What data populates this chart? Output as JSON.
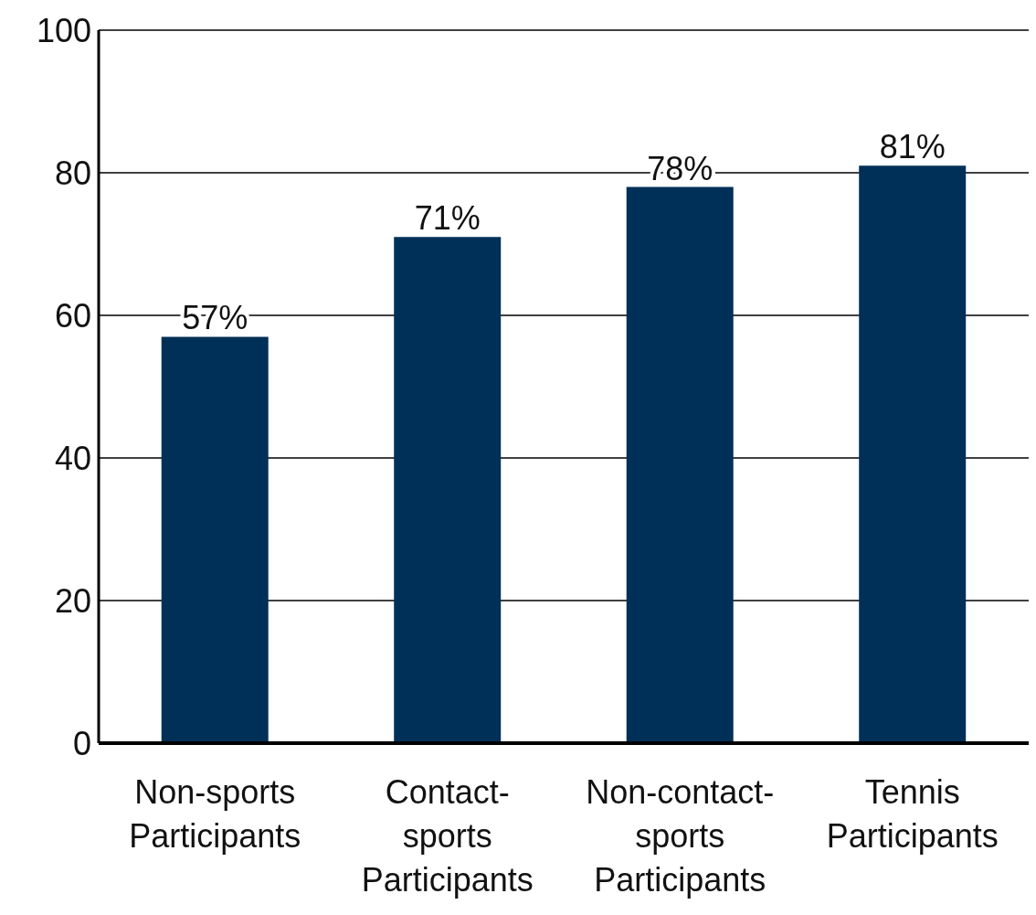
{
  "chart_data": {
    "type": "bar",
    "categories": [
      "Non-sports Participants",
      "Contact-sports Participants",
      "Non-contact-sports Participants",
      "Tennis Participants"
    ],
    "values": [
      57,
      71,
      78,
      81
    ],
    "color": "#003057",
    "value_labels": [
      "57%",
      "71%",
      "78%",
      "81%"
    ],
    "ylim": [
      0,
      100
    ],
    "yticks": [
      0,
      20,
      40,
      60,
      80,
      100
    ],
    "grid": "y"
  }
}
